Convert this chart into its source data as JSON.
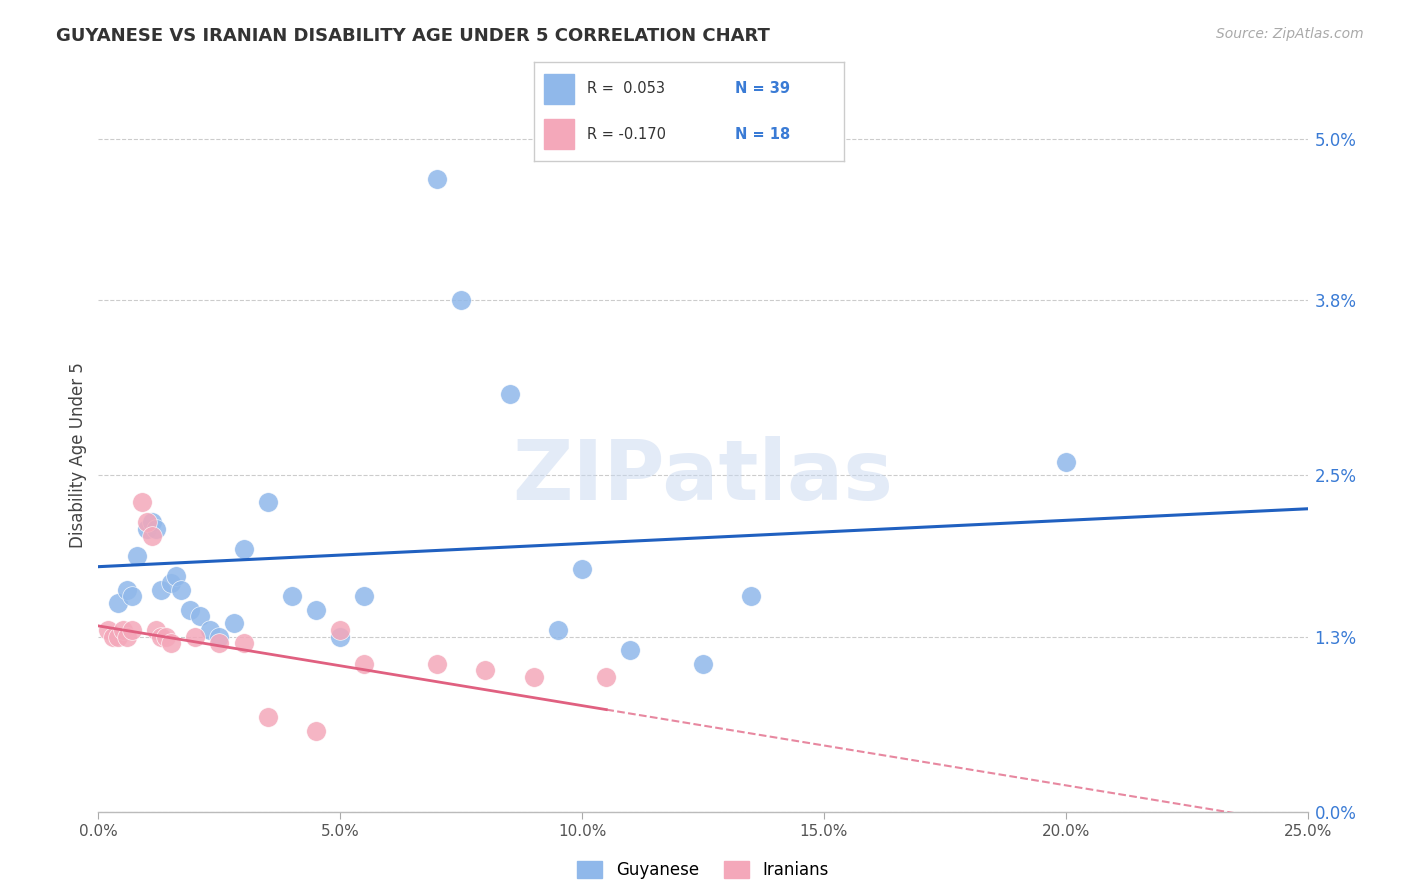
{
  "title": "GUYANESE VS IRANIAN DISABILITY AGE UNDER 5 CORRELATION CHART",
  "source": "Source: ZipAtlas.com",
  "ylabel": "Disability Age Under 5",
  "xlabel_vals": [
    0.0,
    5.0,
    10.0,
    15.0,
    20.0,
    25.0
  ],
  "ylabel_vals": [
    0.0,
    1.3,
    2.5,
    3.8,
    5.0
  ],
  "xlim": [
    0.0,
    25.0
  ],
  "ylim": [
    0.0,
    5.3
  ],
  "guyanese_color": "#90b8ea",
  "iranian_color": "#f4a8ba",
  "trend_blue": "#2060c0",
  "trend_pink": "#e06080",
  "guyanese_x": [
    0.4,
    0.6,
    0.7,
    0.8,
    1.0,
    1.1,
    1.2,
    1.3,
    1.5,
    1.6,
    1.7,
    1.9,
    2.1,
    2.3,
    2.5,
    2.8,
    3.0,
    3.5,
    4.0,
    4.5,
    5.0,
    5.5,
    7.0,
    7.5,
    8.5,
    9.5,
    10.0,
    11.0,
    12.5,
    13.5,
    20.0
  ],
  "guyanese_y": [
    1.55,
    1.65,
    1.6,
    1.9,
    2.1,
    2.15,
    2.1,
    1.65,
    1.7,
    1.75,
    1.65,
    1.5,
    1.45,
    1.35,
    1.3,
    1.4,
    1.95,
    2.3,
    1.6,
    1.5,
    1.3,
    1.6,
    4.7,
    3.8,
    3.1,
    1.35,
    1.8,
    1.2,
    1.1,
    1.6,
    2.6
  ],
  "iranian_x": [
    0.2,
    0.3,
    0.4,
    0.5,
    0.6,
    0.7,
    0.9,
    1.0,
    1.1,
    1.2,
    1.3,
    1.4,
    1.5,
    2.0,
    2.5,
    3.0,
    3.5,
    4.5,
    5.0,
    5.5,
    7.0,
    8.0,
    9.0,
    10.5
  ],
  "iranian_y": [
    1.35,
    1.3,
    1.3,
    1.35,
    1.3,
    1.35,
    2.3,
    2.15,
    2.05,
    1.35,
    1.3,
    1.3,
    1.25,
    1.3,
    1.25,
    1.25,
    0.7,
    0.6,
    1.35,
    1.1,
    1.1,
    1.05,
    1.0,
    1.0
  ],
  "blue_trend_x0": 0.0,
  "blue_trend_y0": 1.82,
  "blue_trend_x1": 25.0,
  "blue_trend_y1": 2.25,
  "pink_trend_x0": 0.0,
  "pink_trend_y0": 1.38,
  "pink_trend_x1": 25.0,
  "pink_trend_y1": -0.1,
  "pink_solid_end_x": 10.5,
  "watermark": "ZIPatlas",
  "background_color": "#ffffff",
  "grid_color": "#cccccc"
}
